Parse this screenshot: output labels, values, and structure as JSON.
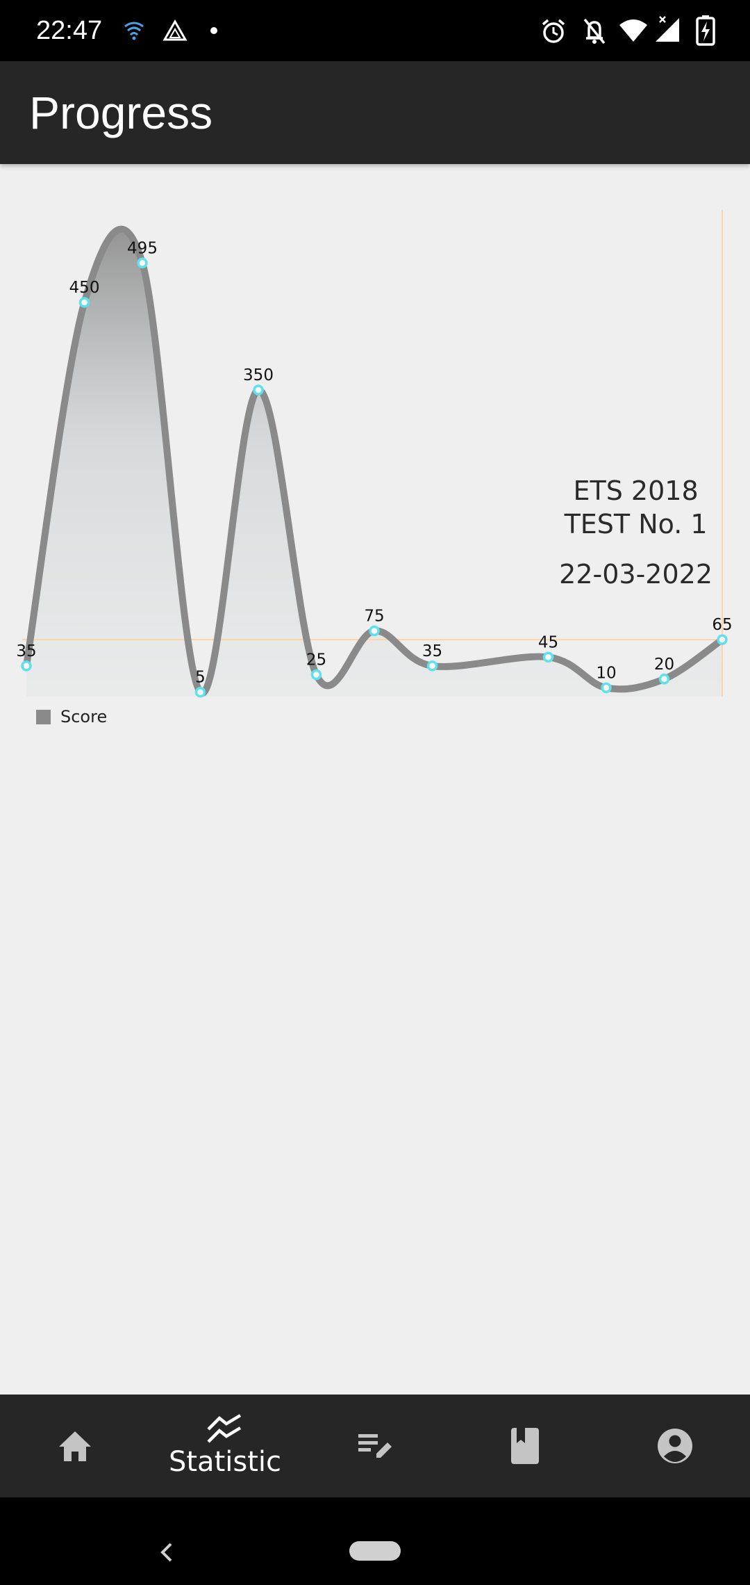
{
  "status_bar": {
    "time": "22:47",
    "left_icons": [
      "wifi-signal-icon",
      "drive-icon",
      "dot-icon"
    ],
    "right_icons": [
      "alarm-icon",
      "notifications-off-icon",
      "wifi-icon",
      "cell-signal-icon",
      "battery-charging-icon"
    ]
  },
  "app_bar": {
    "title": "Progress"
  },
  "chart_data": {
    "type": "line",
    "smooth": true,
    "filled": true,
    "series": [
      {
        "name": "Score",
        "color": "#8a8a8a",
        "values": [
          35,
          450,
          495,
          5,
          350,
          25,
          75,
          35,
          45,
          10,
          20,
          65
        ]
      }
    ],
    "x": [
      0,
      1,
      2,
      3,
      4,
      5,
      6,
      7,
      9,
      10,
      11,
      12
    ],
    "point_labels": [
      "35",
      "450",
      "495",
      "5",
      "350",
      "25",
      "75",
      "35",
      "45",
      "10",
      "20",
      "65"
    ],
    "ylim": [
      0,
      500
    ],
    "xlim": [
      0,
      12
    ],
    "highlight": {
      "x": 12,
      "y": 65,
      "color": "#ffd5a6"
    },
    "point_color": "#5fe0ee",
    "legend": {
      "position": "bottom-left",
      "entries": [
        "Score"
      ]
    },
    "grid": false
  },
  "marker": {
    "line1": "ETS 2018",
    "line2": "TEST No. 1",
    "date": "22-03-2022"
  },
  "bottom_nav": {
    "items": [
      {
        "icon": "home-icon",
        "label": ""
      },
      {
        "icon": "statistic-icon",
        "label": "Statistic",
        "selected": true
      },
      {
        "icon": "edit-list-icon",
        "label": ""
      },
      {
        "icon": "bookmark-icon",
        "label": ""
      },
      {
        "icon": "account-icon",
        "label": ""
      }
    ]
  },
  "system_nav": {
    "icons": [
      "back-icon",
      "home-pill-icon"
    ]
  }
}
